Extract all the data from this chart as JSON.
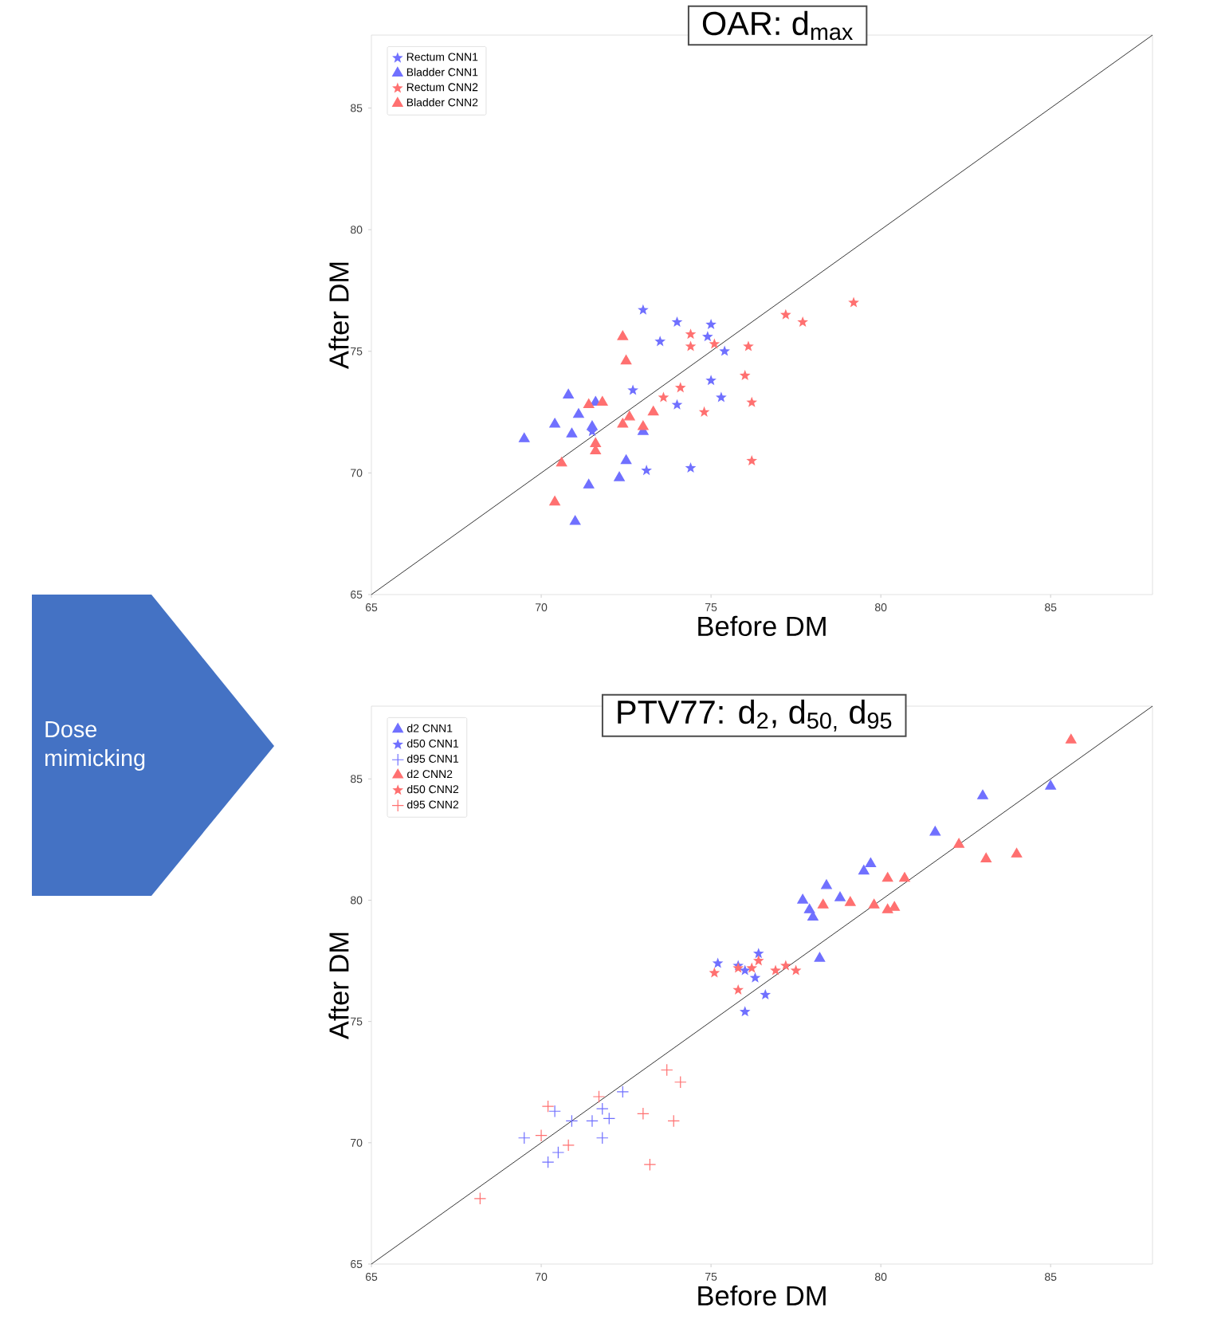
{
  "chart_data": [
    {
      "type": "scatter",
      "title": "OAR: d$_{max}$",
      "xlabel": "Before DM",
      "ylabel": "After DM",
      "xlim": [
        65,
        88
      ],
      "ylim": [
        65,
        88
      ],
      "xticks": [
        65,
        70,
        75,
        80,
        85
      ],
      "yticks": [
        65,
        70,
        75,
        80,
        85
      ],
      "legend": "top left",
      "series": [
        {
          "name": "Rectum CNN1",
          "color": "#7070ff",
          "marker": "star",
          "x": [
            73.0,
            74.0,
            73.5,
            75.0,
            74.9,
            75.4,
            75.0,
            75.3,
            72.7,
            74.0,
            73.1,
            74.4,
            71.5
          ],
          "values": [
            76.7,
            76.2,
            75.4,
            76.1,
            75.6,
            75.0,
            73.8,
            73.1,
            73.4,
            72.8,
            70.1,
            70.2,
            71.7
          ]
        },
        {
          "name": "Bladder CNN1",
          "color": "#7070ff",
          "marker": "triangle",
          "x": [
            70.8,
            70.4,
            69.5,
            70.9,
            71.1,
            71.6,
            71.5,
            73.0,
            72.5,
            72.3,
            71.4,
            71.0
          ],
          "values": [
            73.2,
            72.0,
            71.4,
            71.6,
            72.4,
            72.9,
            71.9,
            71.7,
            70.5,
            69.8,
            69.5,
            68.0
          ]
        },
        {
          "name": "Rectum CNN2",
          "color": "#ff7070",
          "marker": "star",
          "x": [
            79.2,
            77.2,
            77.7,
            74.4,
            74.4,
            75.1,
            76.1,
            76.0,
            76.2,
            74.8,
            74.1,
            73.6,
            76.2
          ],
          "values": [
            77.0,
            76.5,
            76.2,
            75.7,
            75.2,
            75.3,
            75.2,
            74.0,
            72.9,
            72.5,
            73.5,
            73.1,
            70.5
          ]
        },
        {
          "name": "Bladder CNN2",
          "color": "#ff7070",
          "marker": "triangle",
          "x": [
            72.4,
            72.5,
            71.8,
            71.4,
            72.4,
            72.6,
            73.3,
            73.0,
            71.6,
            71.6,
            70.6,
            70.4
          ],
          "values": [
            75.6,
            74.6,
            72.9,
            72.8,
            72.0,
            72.3,
            72.5,
            71.9,
            71.2,
            70.9,
            70.4,
            68.8
          ]
        },
        {
          "type": "line",
          "color": "#000000",
          "marker": "none",
          "line_style": "solid",
          "x": [
            65,
            88
          ],
          "values": [
            65,
            88
          ]
        }
      ]
    },
    {
      "type": "scatter",
      "title": "PTV77: d$_{2}$, d$_{50,}$ d$_{95}$",
      "xlabel": "Before DM",
      "ylabel": "After DM",
      "xlim": [
        65,
        88
      ],
      "ylim": [
        65,
        88
      ],
      "xticks": [
        65,
        70,
        75,
        80,
        85
      ],
      "yticks": [
        65,
        70,
        75,
        80,
        85
      ],
      "legend": "top left",
      "annotations": [
        "Dose mimicking"
      ],
      "series": [
        {
          "name": "d2 CNN1",
          "color": "#7070ff",
          "marker": "triangle",
          "x": [
            85.0,
            83.0,
            81.6,
            79.7,
            79.5,
            78.4,
            77.7,
            78.8,
            77.9,
            78.0,
            78.2
          ],
          "values": [
            84.7,
            84.3,
            82.8,
            81.5,
            81.2,
            80.6,
            80.0,
            80.1,
            79.6,
            79.3,
            77.6
          ]
        },
        {
          "name": "d50 CNN1",
          "color": "#7070ff",
          "marker": "star",
          "x": [
            75.2,
            75.8,
            76.0,
            76.4,
            76.3,
            76.6,
            76.0
          ],
          "values": [
            77.4,
            77.3,
            77.1,
            77.8,
            76.8,
            76.1,
            75.4
          ]
        },
        {
          "name": "d95 CNN1",
          "color": "#7070ff",
          "marker": "cross",
          "x": [
            70.4,
            70.9,
            71.8,
            72.0,
            71.8,
            70.5,
            70.2,
            69.5,
            72.4,
            71.5
          ],
          "values": [
            71.3,
            70.9,
            71.4,
            71.0,
            70.2,
            69.6,
            69.2,
            70.2,
            72.1,
            70.9
          ]
        },
        {
          "name": "d2 CNN2",
          "color": "#ff7070",
          "marker": "triangle",
          "x": [
            85.6,
            82.3,
            83.1,
            84.0,
            80.2,
            80.7,
            78.3,
            79.1,
            79.8,
            80.2,
            80.4
          ],
          "values": [
            86.6,
            82.3,
            81.7,
            81.9,
            80.9,
            80.9,
            79.8,
            79.9,
            79.8,
            79.6,
            79.7
          ]
        },
        {
          "name": "d50 CNN2",
          "color": "#ff7070",
          "marker": "star",
          "x": [
            75.1,
            75.8,
            76.2,
            76.4,
            76.9,
            77.2,
            77.5,
            75.8
          ],
          "values": [
            77.0,
            76.3,
            77.2,
            77.5,
            77.1,
            77.3,
            77.1,
            77.2
          ]
        },
        {
          "name": "d95 CNN2",
          "color": "#ff7070",
          "marker": "cross",
          "x": [
            68.2,
            70.2,
            70.0,
            70.8,
            71.7,
            73.0,
            73.2,
            73.7,
            74.1,
            73.9
          ],
          "values": [
            67.7,
            71.5,
            70.3,
            69.9,
            71.9,
            71.2,
            69.1,
            73.0,
            72.5,
            70.9
          ]
        },
        {
          "type": "line",
          "color": "#000000",
          "marker": "none",
          "line_style": "solid",
          "x": [
            65,
            88
          ],
          "values": [
            65,
            88
          ]
        }
      ]
    }
  ]
}
